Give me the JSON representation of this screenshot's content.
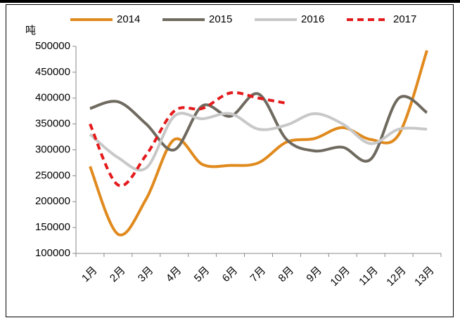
{
  "chart_data": {
    "type": "line",
    "y_label": "吨",
    "categories": [
      "1月",
      "2月",
      "3月",
      "4月",
      "5月",
      "6月",
      "7月",
      "8月",
      "9月",
      "10月",
      "11月",
      "12月",
      "13月"
    ],
    "series": [
      {
        "name": "2014",
        "color": "#e08a1e",
        "dash": false,
        "values": [
          268000,
          137000,
          205000,
          320000,
          272000,
          270000,
          275000,
          315000,
          322000,
          343000,
          320000,
          330000,
          492000
        ]
      },
      {
        "name": "2015",
        "color": "#6f6a5f",
        "dash": false,
        "values": [
          380000,
          393000,
          350000,
          300000,
          385000,
          365000,
          408000,
          320000,
          298000,
          305000,
          282000,
          400000,
          372000
        ]
      },
      {
        "name": "2016",
        "color": "#c8c8c8",
        "dash": false,
        "values": [
          330000,
          285000,
          265000,
          365000,
          360000,
          370000,
          340000,
          348000,
          370000,
          350000,
          312000,
          340000,
          340000
        ]
      },
      {
        "name": "2017",
        "color": "#e41a1c",
        "dash": true,
        "values": [
          350000,
          232000,
          290000,
          375000,
          380000,
          410000,
          400000,
          390000,
          null,
          null,
          null,
          null,
          null
        ]
      }
    ],
    "ylim": [
      100000,
      500000
    ],
    "yticks": [
      100000,
      150000,
      200000,
      250000,
      300000,
      350000,
      400000,
      450000,
      500000
    ]
  }
}
